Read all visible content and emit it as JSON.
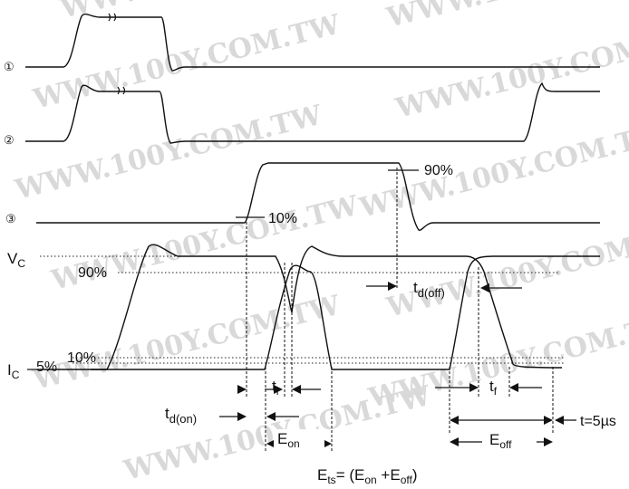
{
  "watermark": {
    "text": "WWW.100Y.COM.TW"
  },
  "channels": {
    "ch1": "①",
    "ch2": "②",
    "ch3": "③",
    "vc_main": "V",
    "vc_sub": "C",
    "ic_main": "I",
    "ic_sub": "C"
  },
  "levels": {
    "pct90_top": "90%",
    "pct10_mid": "10%",
    "pct90_left": "90%",
    "pct5": "5%",
    "pct10_low": "10%"
  },
  "timing": {
    "td_off_main": "t",
    "td_off_sub": "d(off)",
    "tr_main": "t",
    "tr_sub": "r",
    "tf_main": "t",
    "tf_sub": "f",
    "td_on_main": "t",
    "td_on_sub": "d(on)",
    "eon_main": "E",
    "eon_sub": "on",
    "eoff_main": "E",
    "eoff_sub": "off",
    "period": "t=5µs"
  },
  "formula": {
    "e": "E",
    "ts": "ts",
    "eq_open": "= (E",
    "on": "on",
    "plus": " +E",
    "off": "off",
    "close": ")"
  }
}
